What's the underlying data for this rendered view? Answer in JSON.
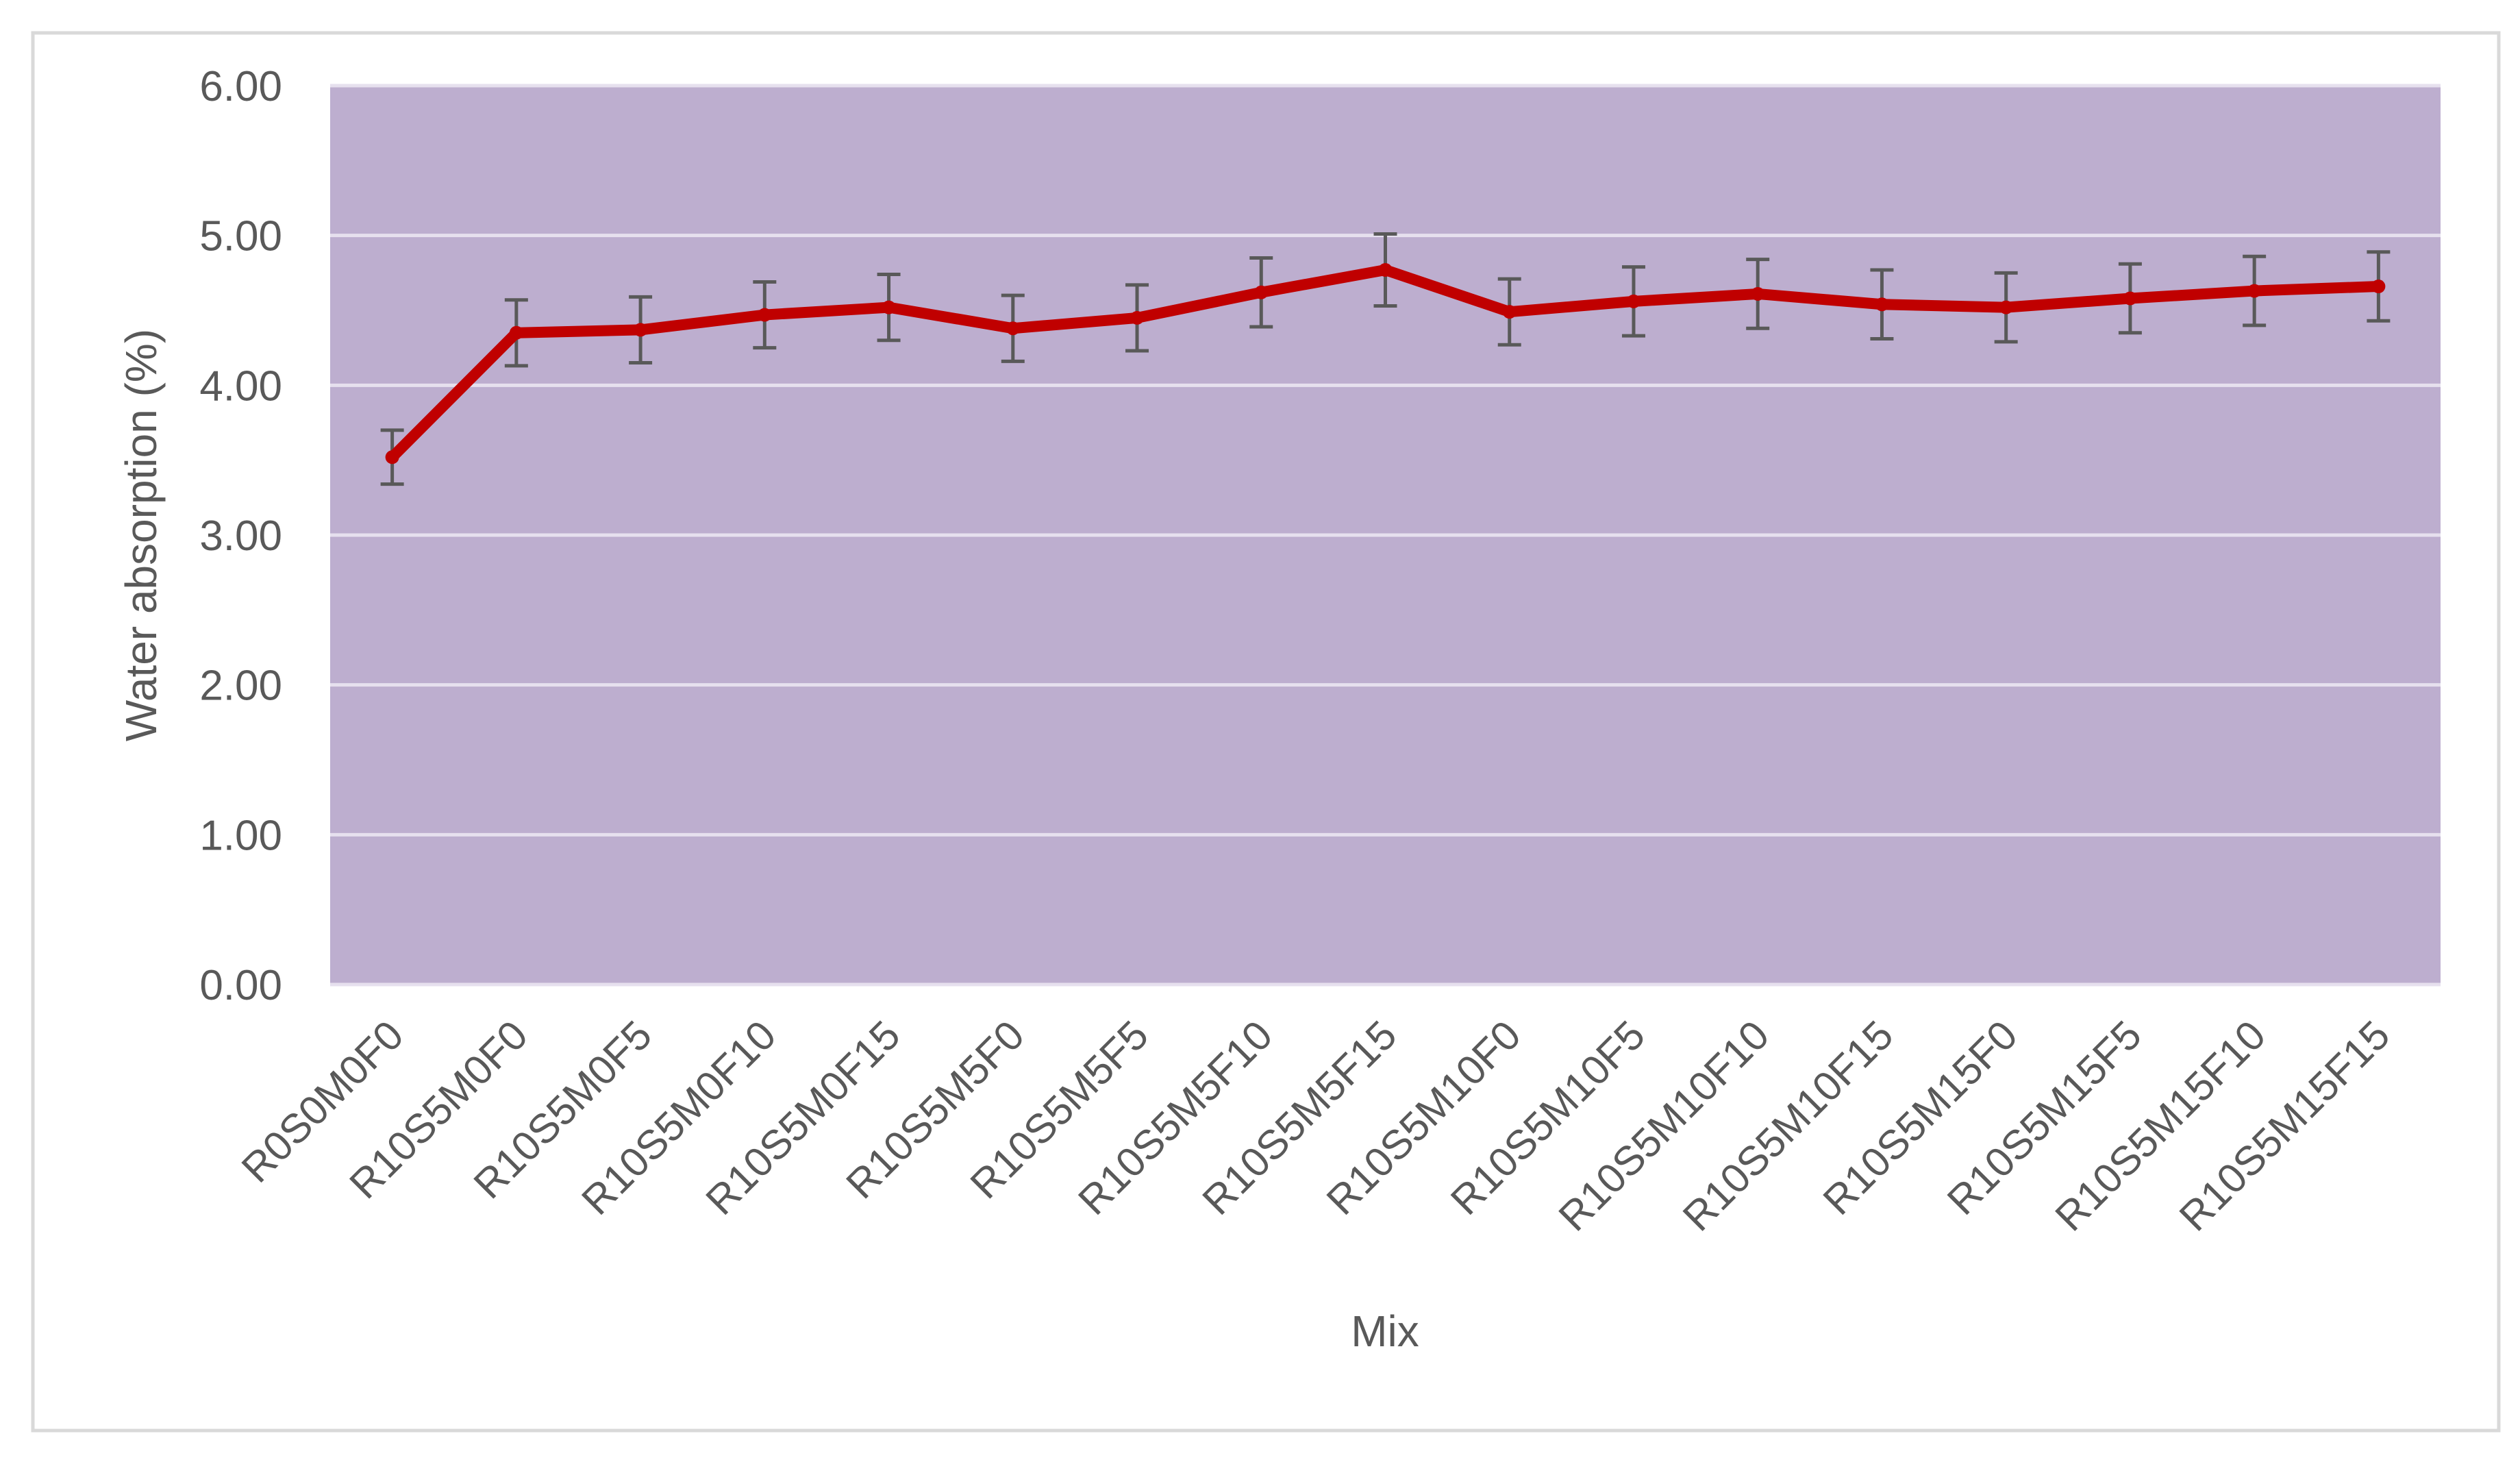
{
  "chart_data": {
    "type": "line",
    "title": "",
    "xlabel": "Mix",
    "ylabel": "Water absorption (%)",
    "ylim": [
      0,
      6
    ],
    "yticks": [
      "0.00",
      "1.00",
      "2.00",
      "3.00",
      "4.00",
      "5.00",
      "6.00"
    ],
    "grid": true,
    "legend": "none",
    "categories": [
      "R0S0M0F0",
      "R10S5M0F0",
      "R10S5M0F5",
      "R10S5M0F10",
      "R10S5M0F15",
      "R10S5M5F0",
      "R10S5M5F5",
      "R10S5M5F10",
      "R10S5M5F15",
      "R10S5M10F0",
      "R10S5M10F5",
      "R10S5M10F10",
      "R10S5M10F15",
      "R10S5M15F0",
      "R10S5M15F5",
      "R10S5M15F10",
      "R10S5M15F15"
    ],
    "series": [
      {
        "values": [
          3.52,
          4.35,
          4.37,
          4.47,
          4.52,
          4.38,
          4.45,
          4.62,
          4.77,
          4.49,
          4.56,
          4.61,
          4.54,
          4.52,
          4.58,
          4.63,
          4.66
        ],
        "error": [
          0.18,
          0.22,
          0.22,
          0.22,
          0.22,
          0.22,
          0.22,
          0.23,
          0.24,
          0.22,
          0.23,
          0.23,
          0.23,
          0.23,
          0.23,
          0.23,
          0.23
        ]
      }
    ],
    "colors": {
      "plot_background": "#bdaecf",
      "gridline": "#e6e0ee",
      "line": "#c00000",
      "error_bar": "#595959",
      "text": "#595959",
      "frame": "#d9d9d9"
    }
  }
}
